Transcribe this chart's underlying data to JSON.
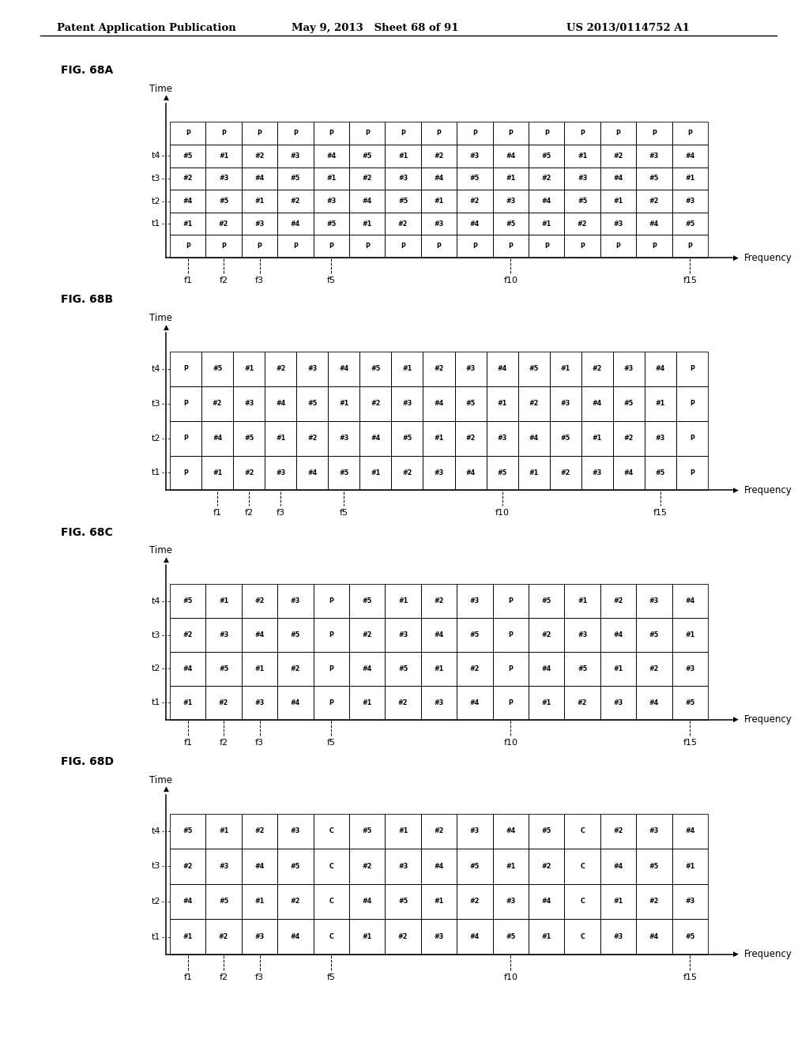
{
  "header_left": "Patent Application Publication",
  "header_middle": "May 9, 2013   Sheet 68 of 91",
  "header_right": "US 2013/0114752 A1",
  "figures": [
    {
      "label": "FIG. 68A",
      "has_top_P": true,
      "has_bot_P": true,
      "n_cols": 15,
      "rows": {
        "top_P": [
          "P",
          "P",
          "P",
          "P",
          "P",
          "P",
          "P",
          "P",
          "P",
          "P",
          "P",
          "P",
          "P",
          "P",
          "P"
        ],
        "t4": [
          "#5",
          "#1",
          "#2",
          "#3",
          "#4",
          "#5",
          "#1",
          "#2",
          "#3",
          "#4",
          "#5",
          "#1",
          "#2",
          "#3",
          "#4"
        ],
        "t3": [
          "#2",
          "#3",
          "#4",
          "#5",
          "#1",
          "#2",
          "#3",
          "#4",
          "#5",
          "#1",
          "#2",
          "#3",
          "#4",
          "#5",
          "#1"
        ],
        "t2": [
          "#4",
          "#5",
          "#1",
          "#2",
          "#3",
          "#4",
          "#5",
          "#1",
          "#2",
          "#3",
          "#4",
          "#5",
          "#1",
          "#2",
          "#3"
        ],
        "t1": [
          "#1",
          "#2",
          "#3",
          "#4",
          "#5",
          "#1",
          "#2",
          "#3",
          "#4",
          "#5",
          "#1",
          "#2",
          "#3",
          "#4",
          "#5"
        ],
        "bot_P": [
          "P",
          "P",
          "P",
          "P",
          "P",
          "P",
          "P",
          "P",
          "P",
          "P",
          "P",
          "P",
          "P",
          "P",
          "P"
        ]
      },
      "row_order": [
        "top_P",
        "t4",
        "t3",
        "t2",
        "t1",
        "bot_P"
      ],
      "data_rows": [
        "t4",
        "t3",
        "t2",
        "t1"
      ]
    },
    {
      "label": "FIG. 68B",
      "has_top_P": false,
      "has_bot_P": false,
      "n_cols": 17,
      "rows": {
        "t4": [
          "P",
          "#5",
          "#1",
          "#2",
          "#3",
          "#4",
          "#5",
          "#1",
          "#2",
          "#3",
          "#4",
          "#5",
          "#1",
          "#2",
          "#3",
          "#4",
          "P"
        ],
        "t3": [
          "P",
          "#2",
          "#3",
          "#4",
          "#5",
          "#1",
          "#2",
          "#3",
          "#4",
          "#5",
          "#1",
          "#2",
          "#3",
          "#4",
          "#5",
          "#1",
          "P"
        ],
        "t2": [
          "P",
          "#4",
          "#5",
          "#1",
          "#2",
          "#3",
          "#4",
          "#5",
          "#1",
          "#2",
          "#3",
          "#4",
          "#5",
          "#1",
          "#2",
          "#3",
          "P"
        ],
        "t1": [
          "P",
          "#1",
          "#2",
          "#3",
          "#4",
          "#5",
          "#1",
          "#2",
          "#3",
          "#4",
          "#5",
          "#1",
          "#2",
          "#3",
          "#4",
          "#5",
          "P"
        ]
      },
      "row_order": [
        "t4",
        "t3",
        "t2",
        "t1"
      ],
      "data_rows": [
        "t4",
        "t3",
        "t2",
        "t1"
      ]
    },
    {
      "label": "FIG. 68C",
      "has_top_P": false,
      "has_bot_P": false,
      "n_cols": 15,
      "rows": {
        "t4": [
          "#5",
          "#1",
          "#2",
          "#3",
          "P",
          "#5",
          "#1",
          "#2",
          "#3",
          "P",
          "#5",
          "#1",
          "#2",
          "#3",
          "#4"
        ],
        "t3": [
          "#2",
          "#3",
          "#4",
          "#5",
          "P",
          "#2",
          "#3",
          "#4",
          "#5",
          "P",
          "#2",
          "#3",
          "#4",
          "#5",
          "#1"
        ],
        "t2": [
          "#4",
          "#5",
          "#1",
          "#2",
          "P",
          "#4",
          "#5",
          "#1",
          "#2",
          "P",
          "#4",
          "#5",
          "#1",
          "#2",
          "#3"
        ],
        "t1": [
          "#1",
          "#2",
          "#3",
          "#4",
          "P",
          "#1",
          "#2",
          "#3",
          "#4",
          "P",
          "#1",
          "#2",
          "#3",
          "#4",
          "#5"
        ]
      },
      "row_order": [
        "t4",
        "t3",
        "t2",
        "t1"
      ],
      "data_rows": [
        "t4",
        "t3",
        "t2",
        "t1"
      ]
    },
    {
      "label": "FIG. 68D",
      "has_top_P": false,
      "has_bot_P": false,
      "n_cols": 15,
      "rows": {
        "t4": [
          "#5",
          "#1",
          "#2",
          "#3",
          "C",
          "#5",
          "#1",
          "#2",
          "#3",
          "#4",
          "#5",
          "C",
          "#2",
          "#3",
          "#4"
        ],
        "t3": [
          "#2",
          "#3",
          "#4",
          "#5",
          "C",
          "#2",
          "#3",
          "#4",
          "#5",
          "#1",
          "#2",
          "C",
          "#4",
          "#5",
          "#1"
        ],
        "t2": [
          "#4",
          "#5",
          "#1",
          "#2",
          "C",
          "#4",
          "#5",
          "#1",
          "#2",
          "#3",
          "#4",
          "C",
          "#1",
          "#2",
          "#3"
        ],
        "t1": [
          "#1",
          "#2",
          "#3",
          "#4",
          "C",
          "#1",
          "#2",
          "#3",
          "#4",
          "#5",
          "#1",
          "C",
          "#3",
          "#4",
          "#5"
        ]
      },
      "row_order": [
        "t4",
        "t3",
        "t2",
        "t1"
      ],
      "data_rows": [
        "t4",
        "t3",
        "t2",
        "t1"
      ]
    }
  ],
  "freq_ticks": [
    "f1",
    "f2",
    "f3",
    "f5",
    "f10",
    "f15"
  ],
  "tick_cols_15": {
    "f1": 0,
    "f2": 1,
    "f3": 2,
    "f5": 4,
    "f10": 9,
    "f15": 14
  },
  "tick_cols_17": {
    "f1": 1,
    "f2": 2,
    "f3": 3,
    "f5": 5,
    "f10": 10,
    "f15": 15
  }
}
